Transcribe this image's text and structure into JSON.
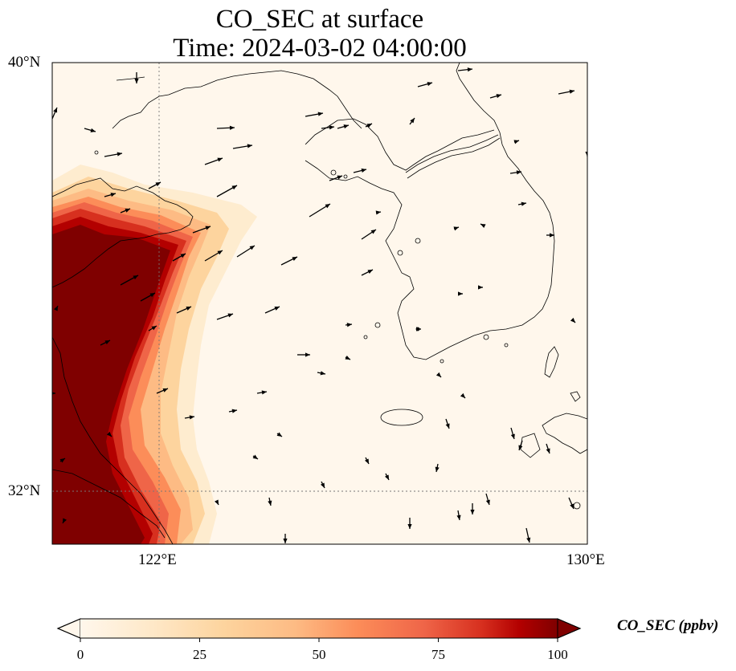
{
  "title": {
    "line1": "CO_SEC at surface",
    "line2": "Time: 2024-03-02 04:00:00"
  },
  "map": {
    "variable": "CO_SEC",
    "level": "surface",
    "lat_range": [
      31.1,
      40.0
    ],
    "lon_range": [
      120.0,
      130.0
    ],
    "lat_labels": [
      "40°N",
      "32°N"
    ],
    "lon_labels": [
      "122°E",
      "130°E"
    ],
    "gridlines": {
      "lon": 122,
      "lat": 32,
      "style": "dotted"
    },
    "colormap": "OrRd",
    "colors": {
      "low": "#fff7ec",
      "mid": "#fdbb84",
      "high": "#7f0000",
      "coast": "#000000"
    }
  },
  "colorbar": {
    "label": "CO_SEC (ppbv)",
    "min": 0,
    "max": 100,
    "ticks": [
      "0",
      "25",
      "50",
      "75",
      "100"
    ],
    "extend": "both"
  }
}
